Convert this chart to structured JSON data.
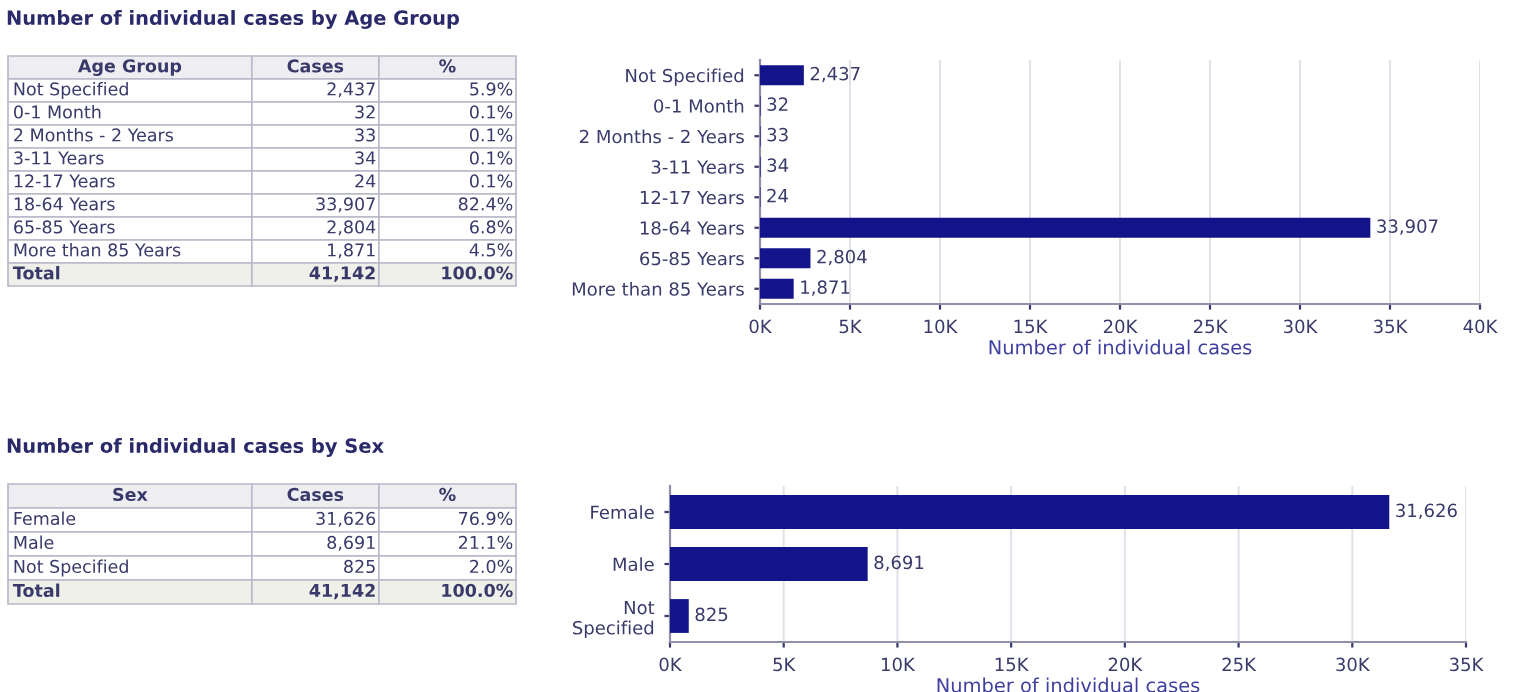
{
  "chart_data": [
    {
      "type": "other",
      "title": "Number of individual cases by Age Group",
      "annotations": [
        "Age Group",
        "Cases",
        "%",
        "Not Specified",
        "2,437",
        "5.9%",
        "0-1 Month",
        "32",
        "0.1%",
        "2 Months - 2 Years",
        "33",
        "0.1%",
        "3-11 Years",
        "34",
        "0.1%",
        "12-17 Years",
        "24",
        "0.1%",
        "18-64 Years",
        "33,907",
        "82.4%",
        "65-85 Years",
        "2,804",
        "6.8%",
        "More than 85 Years",
        "1,871",
        "4.5%",
        "Total",
        "41,142",
        "100.0%"
      ]
    },
    {
      "type": "bar",
      "orientation": "horizontal",
      "xlabel": "Number of individual cases",
      "categories": [
        "Not Specified",
        "0-1 Month",
        "2 Months - 2 Years",
        "3-11 Years",
        "12-17 Years",
        "18-64 Years",
        "65-85 Years",
        "More than 85 Years"
      ],
      "values": [
        2437,
        32,
        33,
        34,
        24,
        33907,
        2804,
        1871
      ],
      "value_labels": [
        "2,437",
        "32",
        "33",
        "34",
        "24",
        "33,907",
        "2,804",
        "1,871"
      ],
      "color": "#14148a",
      "xlim": [
        0,
        40000
      ],
      "grid": "x",
      "xticks": [
        {
          "value": 0,
          "label": "0K"
        },
        {
          "value": 5000,
          "label": "5K"
        },
        {
          "value": 10000,
          "label": "10K"
        },
        {
          "value": 15000,
          "label": "15K"
        },
        {
          "value": 20000,
          "label": "20K"
        },
        {
          "value": 25000,
          "label": "25K"
        },
        {
          "value": 30000,
          "label": "30K"
        },
        {
          "value": 35000,
          "label": "35K"
        },
        {
          "value": 40000,
          "label": "40K"
        }
      ]
    },
    {
      "type": "other",
      "title": "Number of individual cases by Sex",
      "annotations": [
        "Sex",
        "Cases",
        "%",
        "Female",
        "31,626",
        "76.9%",
        "Male",
        "8,691",
        "21.1%",
        "Not Specified",
        "825",
        "2.0%",
        "Total",
        "41,142",
        "100.0%"
      ]
    },
    {
      "type": "bar",
      "orientation": "horizontal",
      "xlabel": "Number of individual cases",
      "categories": [
        "Female",
        "Male",
        "Not\nSpecified"
      ],
      "values": [
        31626,
        8691,
        825
      ],
      "value_labels": [
        "31,626",
        "8,691",
        "825"
      ],
      "color": "#14148a",
      "xlim": [
        0,
        35000
      ],
      "grid": "x",
      "xticks": [
        {
          "value": 0,
          "label": "0K"
        },
        {
          "value": 5000,
          "label": "5K"
        },
        {
          "value": 10000,
          "label": "10K"
        },
        {
          "value": 15000,
          "label": "15K"
        },
        {
          "value": 20000,
          "label": "20K"
        },
        {
          "value": 25000,
          "label": "25K"
        },
        {
          "value": 30000,
          "label": "30K"
        },
        {
          "value": 35000,
          "label": "35K"
        }
      ]
    }
  ]
}
